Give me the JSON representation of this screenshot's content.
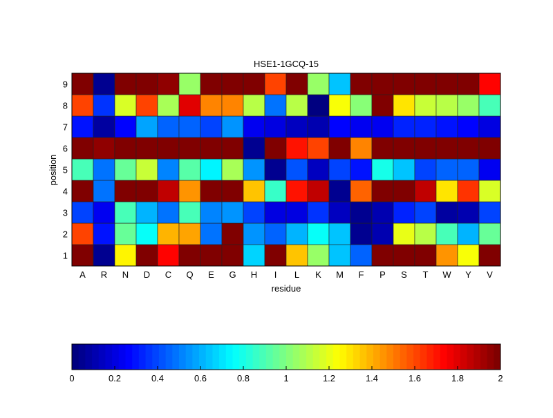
{
  "chart_data": {
    "type": "heatmap",
    "title": "HSE1-1GCQ-15",
    "xlabel": "residue",
    "ylabel": "position",
    "x": [
      "A",
      "R",
      "N",
      "D",
      "C",
      "Q",
      "E",
      "G",
      "H",
      "I",
      "L",
      "K",
      "M",
      "F",
      "P",
      "S",
      "T",
      "W",
      "Y",
      "V"
    ],
    "y": [
      "1",
      "2",
      "3",
      "4",
      "5",
      "6",
      "7",
      "8",
      "9"
    ],
    "values": [
      [
        2,
        0.05,
        1.28,
        2,
        1.75,
        2,
        2,
        2,
        0.68,
        2,
        1.35,
        1.05,
        0.65,
        0.45,
        2,
        2,
        2,
        1.45,
        1.25,
        2
      ],
      [
        1.6,
        0.3,
        0.95,
        0.78,
        1.38,
        1.42,
        0.5,
        2,
        0.55,
        0.45,
        0.6,
        0.78,
        0.65,
        0.05,
        0.1,
        1.2,
        1.1,
        0.9,
        0.6,
        0.95
      ],
      [
        0.4,
        0.25,
        0.88,
        0.62,
        0.5,
        0.88,
        0.52,
        0.55,
        0.38,
        0.2,
        0.2,
        0.35,
        0.15,
        0.05,
        0.1,
        0.33,
        0.38,
        0.07,
        0.1,
        0.38
      ],
      [
        2,
        0.5,
        2,
        2,
        1.85,
        1.45,
        2,
        2,
        1.35,
        0.85,
        1.7,
        1.85,
        0.05,
        1.55,
        2,
        2,
        1.85,
        1.3,
        1.65,
        1.18
      ],
      [
        0.9,
        0.5,
        0.95,
        1.15,
        0.52,
        0.92,
        0.75,
        1.08,
        0.55,
        0.05,
        0.42,
        0.15,
        0.38,
        0.3,
        0.8,
        0.65,
        0.4,
        0.45,
        0.45,
        0.25
      ],
      [
        2,
        1.95,
        2,
        2,
        2,
        2,
        2,
        2,
        0.05,
        2,
        1.7,
        1.6,
        2,
        1.5,
        2,
        2,
        2,
        2,
        2,
        2
      ],
      [
        0.3,
        0.08,
        0.28,
        0.57,
        0.45,
        0.45,
        0.4,
        0.55,
        0.22,
        0.2,
        0.15,
        0.1,
        0.28,
        0.25,
        0.25,
        0.33,
        0.33,
        0.3,
        0.27,
        0.2
      ],
      [
        1.6,
        0.35,
        1.17,
        1.6,
        1.08,
        1.8,
        1.5,
        1.5,
        1.1,
        0.5,
        1.1,
        0.02,
        1.25,
        1.02,
        2,
        1.3,
        1.15,
        1.1,
        1.05,
        0.9
      ],
      [
        2,
        0.05,
        2,
        2,
        1.95,
        1.05,
        2,
        2,
        2,
        1.6,
        2,
        1.05,
        0.65,
        2,
        2,
        2,
        2,
        2,
        2,
        1.72
      ]
    ],
    "colormap": "jet",
    "clim": [
      0,
      2
    ],
    "colorbar": {
      "location": "bottom",
      "ticks": [
        "0",
        "0.2",
        "0.4",
        "0.6",
        "0.8",
        "1",
        "1.2",
        "1.4",
        "1.6",
        "1.8",
        "2"
      ]
    }
  }
}
